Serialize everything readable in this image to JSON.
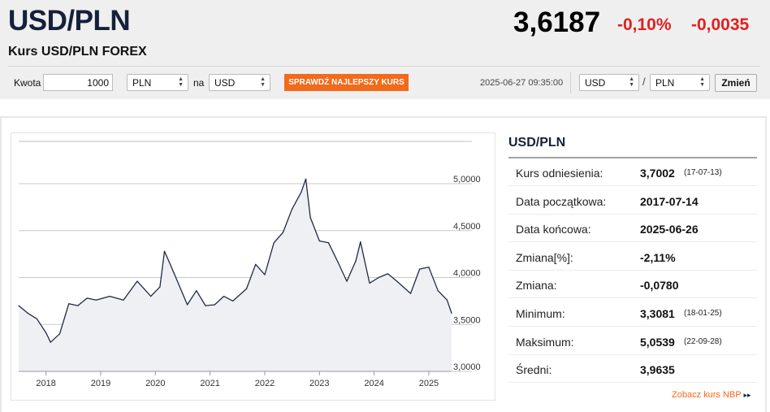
{
  "header": {
    "pair": "USD/PLN",
    "subtitle": "Kurs USD/PLN FOREX",
    "price": "3,6187",
    "change_pct": "-0,10%",
    "change_abs": "-0,0035"
  },
  "converter": {
    "amount_label": "Kwota",
    "amount_value": "1000",
    "from_currency": "PLN",
    "to_label": "na",
    "to_currency": "USD",
    "cta_label": "SPRAWDŹ NAJLEPSZY KURS",
    "datetime": "2025-06-27 09:35:00",
    "pair_from": "USD",
    "pair_sep": "/",
    "pair_to": "PLN",
    "change_button": "Zmień"
  },
  "colors": {
    "accent": "#f26a1b",
    "negative": "#e02020",
    "brand": "#15213a",
    "line": "#1f2a44"
  },
  "chart_data": {
    "type": "line",
    "series": [
      {
        "values": [
          {
            "x": "2017-07",
            "y": 3.7
          },
          {
            "x": "2017-09",
            "y": 3.62
          },
          {
            "x": "2017-11",
            "y": 3.56
          },
          {
            "x": "2018-01",
            "y": 3.41
          },
          {
            "x": "2018-02",
            "y": 3.31
          },
          {
            "x": "2018-04",
            "y": 3.4
          },
          {
            "x": "2018-06",
            "y": 3.72
          },
          {
            "x": "2018-08",
            "y": 3.7
          },
          {
            "x": "2018-10",
            "y": 3.78
          },
          {
            "x": "2018-12",
            "y": 3.76
          },
          {
            "x": "2019-03",
            "y": 3.8
          },
          {
            "x": "2019-06",
            "y": 3.76
          },
          {
            "x": "2019-09",
            "y": 3.96
          },
          {
            "x": "2019-12",
            "y": 3.8
          },
          {
            "x": "2020-02",
            "y": 3.9
          },
          {
            "x": "2020-03",
            "y": 4.28
          },
          {
            "x": "2020-04",
            "y": 4.17
          },
          {
            "x": "2020-06",
            "y": 3.94
          },
          {
            "x": "2020-08",
            "y": 3.71
          },
          {
            "x": "2020-10",
            "y": 3.86
          },
          {
            "x": "2020-12",
            "y": 3.7
          },
          {
            "x": "2021-02",
            "y": 3.71
          },
          {
            "x": "2021-04",
            "y": 3.8
          },
          {
            "x": "2021-06",
            "y": 3.75
          },
          {
            "x": "2021-09",
            "y": 3.88
          },
          {
            "x": "2021-11",
            "y": 4.14
          },
          {
            "x": "2022-01",
            "y": 4.03
          },
          {
            "x": "2022-03",
            "y": 4.37
          },
          {
            "x": "2022-05",
            "y": 4.48
          },
          {
            "x": "2022-07",
            "y": 4.73
          },
          {
            "x": "2022-09",
            "y": 4.91
          },
          {
            "x": "2022-10",
            "y": 5.05
          },
          {
            "x": "2022-11",
            "y": 4.64
          },
          {
            "x": "2023-01",
            "y": 4.39
          },
          {
            "x": "2023-03",
            "y": 4.37
          },
          {
            "x": "2023-05",
            "y": 4.17
          },
          {
            "x": "2023-07",
            "y": 3.96
          },
          {
            "x": "2023-09",
            "y": 4.18
          },
          {
            "x": "2023-10",
            "y": 4.38
          },
          {
            "x": "2023-12",
            "y": 3.94
          },
          {
            "x": "2024-02",
            "y": 4.0
          },
          {
            "x": "2024-04",
            "y": 4.04
          },
          {
            "x": "2024-06",
            "y": 3.96
          },
          {
            "x": "2024-09",
            "y": 3.83
          },
          {
            "x": "2024-11",
            "y": 4.09
          },
          {
            "x": "2025-01",
            "y": 4.11
          },
          {
            "x": "2025-03",
            "y": 3.86
          },
          {
            "x": "2025-05",
            "y": 3.76
          },
          {
            "x": "2025-06",
            "y": 3.62
          }
        ]
      }
    ],
    "y_ticks": [
      "5,0000",
      "4,5000",
      "4,0000",
      "3,5000",
      "3,0000"
    ],
    "x_ticks": [
      "2018",
      "2019",
      "2020",
      "2021",
      "2022",
      "2023",
      "2024",
      "2025"
    ],
    "ylim": [
      3.0,
      5.0
    ],
    "xlim": [
      "2017-07",
      "2025-06"
    ],
    "grid": true
  },
  "stats": {
    "title": "USD/PLN",
    "rows": [
      {
        "label": "Kurs odniesienia:",
        "value": "3,7002",
        "date": "(17-07-13)"
      },
      {
        "label": "Data początkowa:",
        "value": "2017-07-14",
        "date": ""
      },
      {
        "label": "Data końcowa:",
        "value": "2025-06-26",
        "date": ""
      },
      {
        "label": "Zmiana[%]:",
        "value": "-2,11%",
        "date": ""
      },
      {
        "label": "Zmiana:",
        "value": "-0,0780",
        "date": ""
      },
      {
        "label": "Minimum:",
        "value": "3,3081",
        "date": "(18-01-25)"
      },
      {
        "label": "Maksimum:",
        "value": "5,0539",
        "date": "(22-09-28)"
      },
      {
        "label": "Średni:",
        "value": "3,9635",
        "date": ""
      }
    ],
    "nbp_link": "Zobacz kurs NBP"
  }
}
